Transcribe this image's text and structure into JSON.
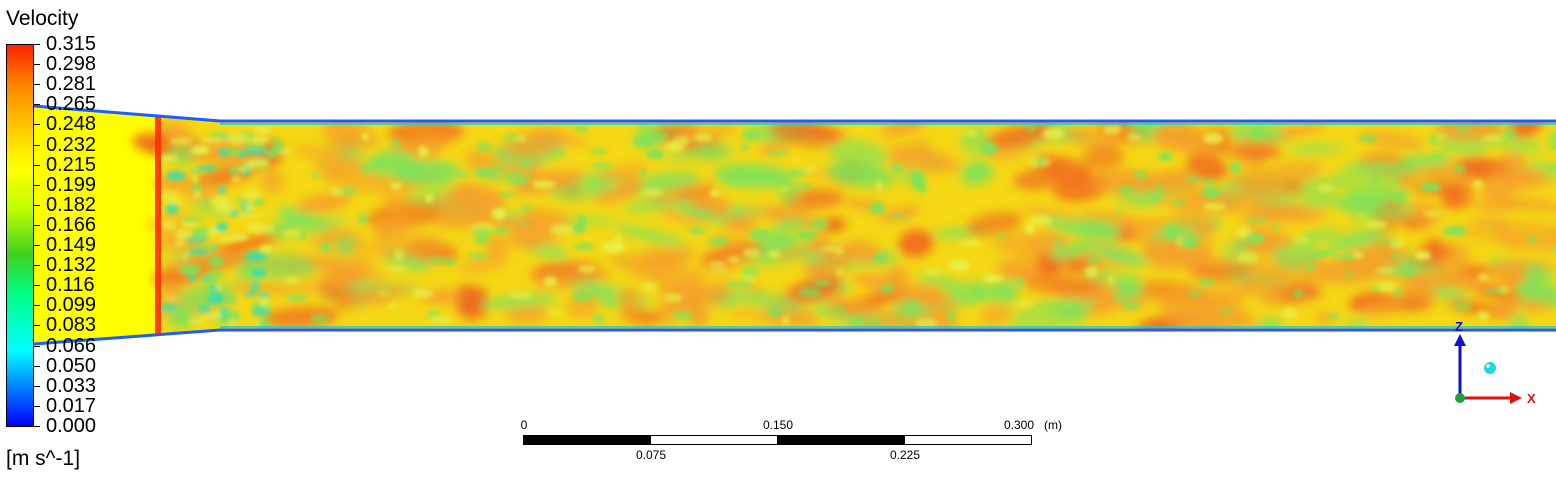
{
  "legend": {
    "title": "Velocity",
    "units": "[m s^-1]",
    "ticks": [
      "0.315",
      "0.298",
      "0.281",
      "0.265",
      "0.248",
      "0.232",
      "0.215",
      "0.199",
      "0.182",
      "0.166",
      "0.149",
      "0.132",
      "0.116",
      "0.099",
      "0.083",
      "0.066",
      "0.050",
      "0.033",
      "0.017",
      "0.000"
    ]
  },
  "scale_bar": {
    "top_labels": [
      "0",
      "0.150",
      "0.300"
    ],
    "unit": "(m)",
    "bottom_labels": [
      "0.075",
      "0.225"
    ]
  },
  "axes": {
    "z_label": "Z",
    "x_label": "X",
    "z_color": "#1010d0",
    "x_color": "#e01010"
  },
  "colors": {
    "field_base": "#f5d816",
    "inlet_yellow": "#ffff00",
    "hot": "#f4a22a",
    "cool": "#7ee25a",
    "wall": "#2060ff",
    "inlet_line": "#ff3000"
  }
}
